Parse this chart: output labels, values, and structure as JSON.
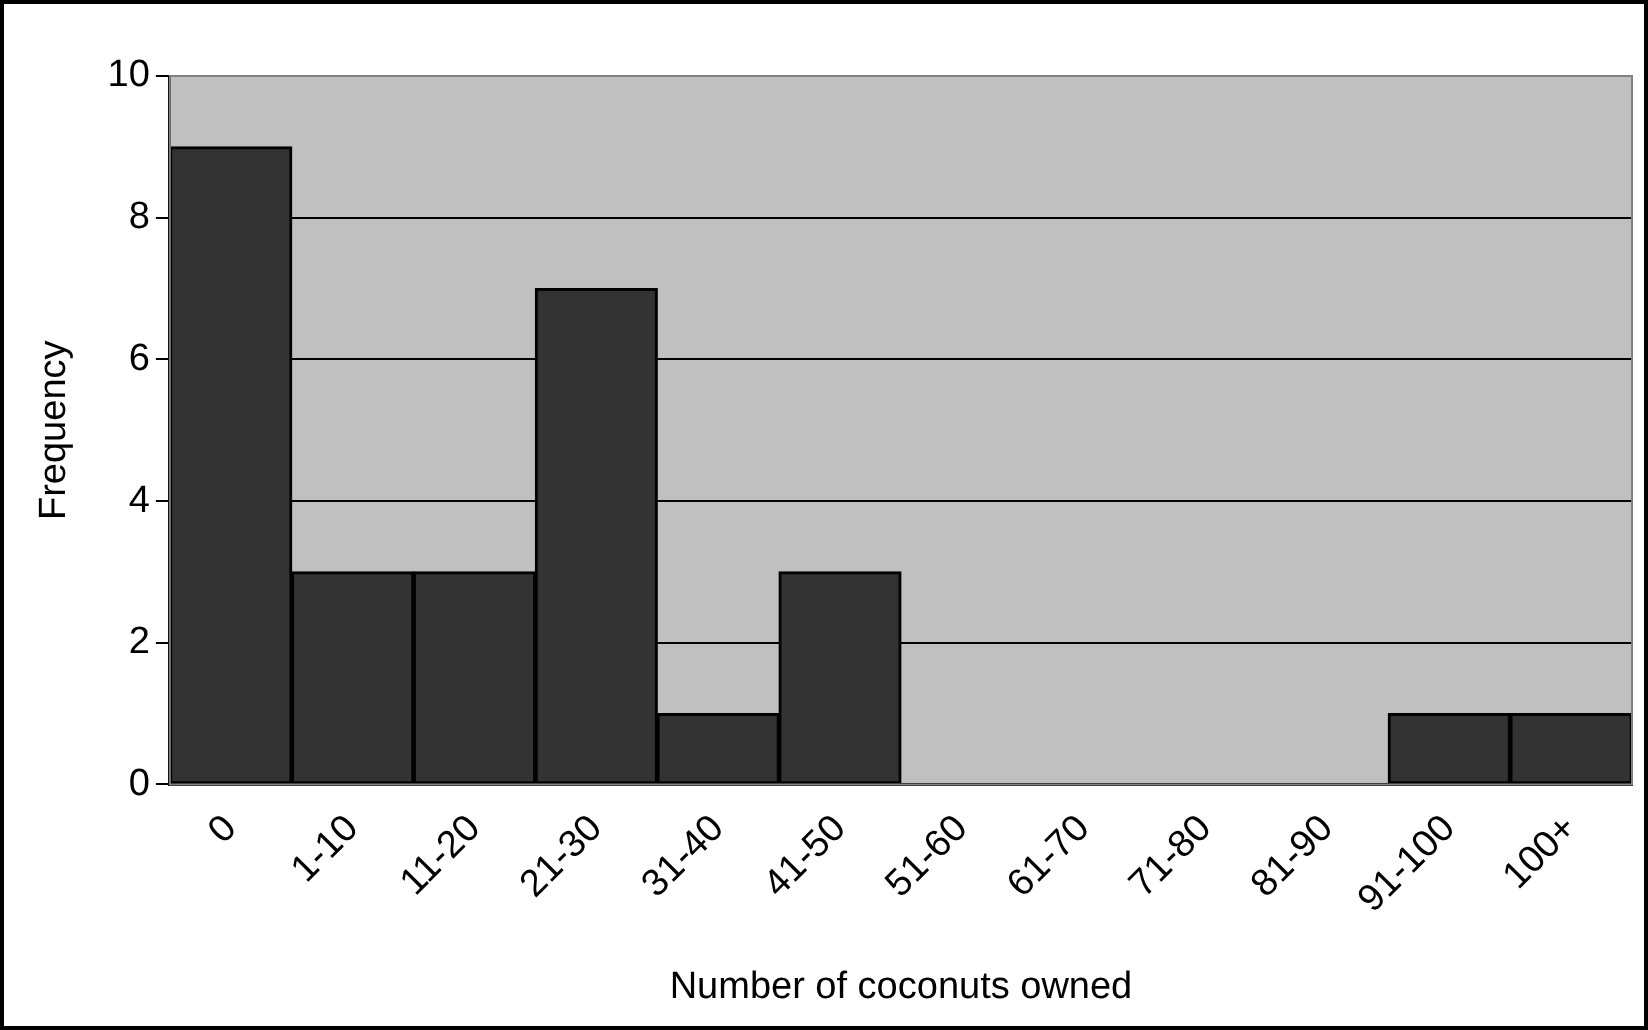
{
  "chart_data": {
    "type": "bar",
    "xlabel": "Number of coconuts owned",
    "ylabel": "Frequency",
    "categories": [
      "0",
      "1-10",
      "11-20",
      "21-30",
      "31-40",
      "41-50",
      "51-60",
      "61-70",
      "71-80",
      "81-90",
      "91-100",
      "100+"
    ],
    "values": [
      9,
      3,
      3,
      7,
      1,
      3,
      0,
      0,
      0,
      0,
      1,
      1
    ],
    "color": "#333333",
    "ylim": [
      0,
      10
    ],
    "yticks": [
      0,
      2,
      4,
      6,
      8,
      10
    ],
    "grid": "y",
    "legend": false
  }
}
